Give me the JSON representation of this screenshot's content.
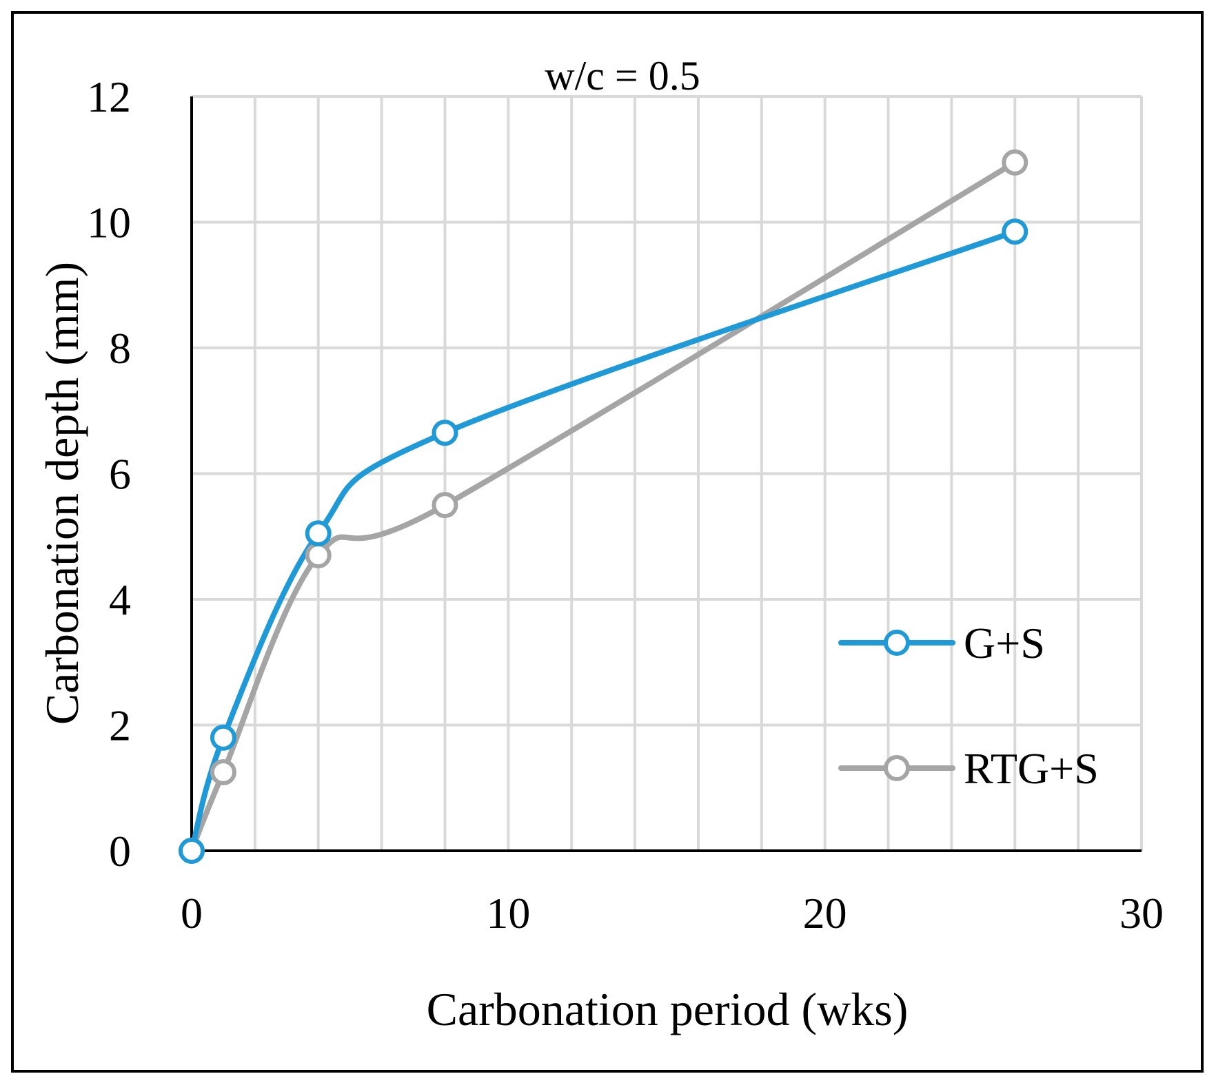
{
  "chart_data": {
    "type": "line",
    "title": "w/c = 0.5",
    "xlabel": "Carbonation period (wks)",
    "ylabel": "Carbonation depth (mm)",
    "xlim": [
      0,
      30
    ],
    "ylim": [
      0,
      12
    ],
    "x_ticks": [
      0,
      10,
      20,
      30
    ],
    "y_ticks": [
      0,
      2,
      4,
      6,
      8,
      10,
      12
    ],
    "x_minor_grid_step": 2,
    "grid": true,
    "smooth": true,
    "legend_position": "right",
    "series": [
      {
        "name": "G+S",
        "color": "#1f9ad6",
        "x": [
          0,
          1,
          4,
          8,
          26
        ],
        "y": [
          0,
          1.8,
          5.05,
          6.65,
          9.85
        ]
      },
      {
        "name": "RTG+S",
        "color": "#a5a5a5",
        "x": [
          0,
          1,
          4,
          8,
          26
        ],
        "y": [
          0,
          1.25,
          4.7,
          5.5,
          10.95
        ]
      }
    ]
  }
}
